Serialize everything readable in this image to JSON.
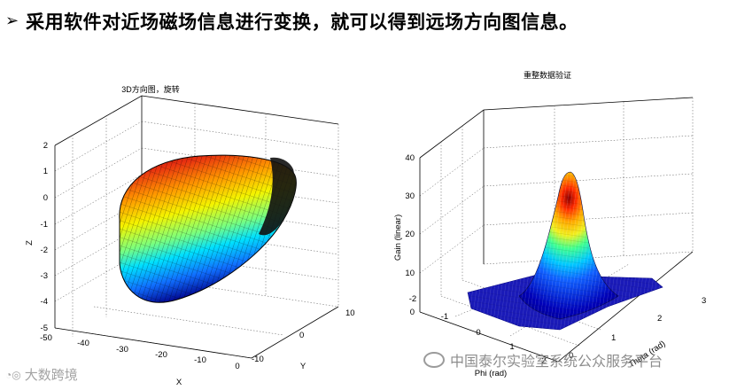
{
  "slide": {
    "bullet": "➢",
    "title": "采用软件对近场磁场信息进行变换，就可以得到远场方向图信息。"
  },
  "left_plot": {
    "title": "3D方向图，旋转",
    "x_label": "X",
    "y_label": "Y",
    "z_label": "Z",
    "z_ticks": [
      "2",
      "1",
      "0",
      "-1",
      "-2",
      "-3",
      "-4",
      "-5"
    ],
    "x_ticks": [
      "-50",
      "-40",
      "-30",
      "-20",
      "-10",
      "0"
    ],
    "y_ticks": [
      "10",
      "0",
      "-10"
    ]
  },
  "right_plot": {
    "title": "重整数据验证",
    "x_label": "Phi (rad)",
    "y_label": "Theta (rad)",
    "z_label": "Gain (linear)",
    "z_ticks": [
      "40",
      "30",
      "20",
      "10",
      "0"
    ],
    "x_ticks": [
      "-2",
      "-1",
      "0",
      "1",
      "2"
    ],
    "y_ticks": [
      "0",
      "1",
      "2",
      "3"
    ]
  },
  "watermarks": {
    "bottom_right": "中国泰尔实验室系统公众服务平台",
    "bottom_left": "大数跨境"
  },
  "colors": {
    "surface_peak": "#8b0000",
    "surface_base": "#00008b"
  }
}
